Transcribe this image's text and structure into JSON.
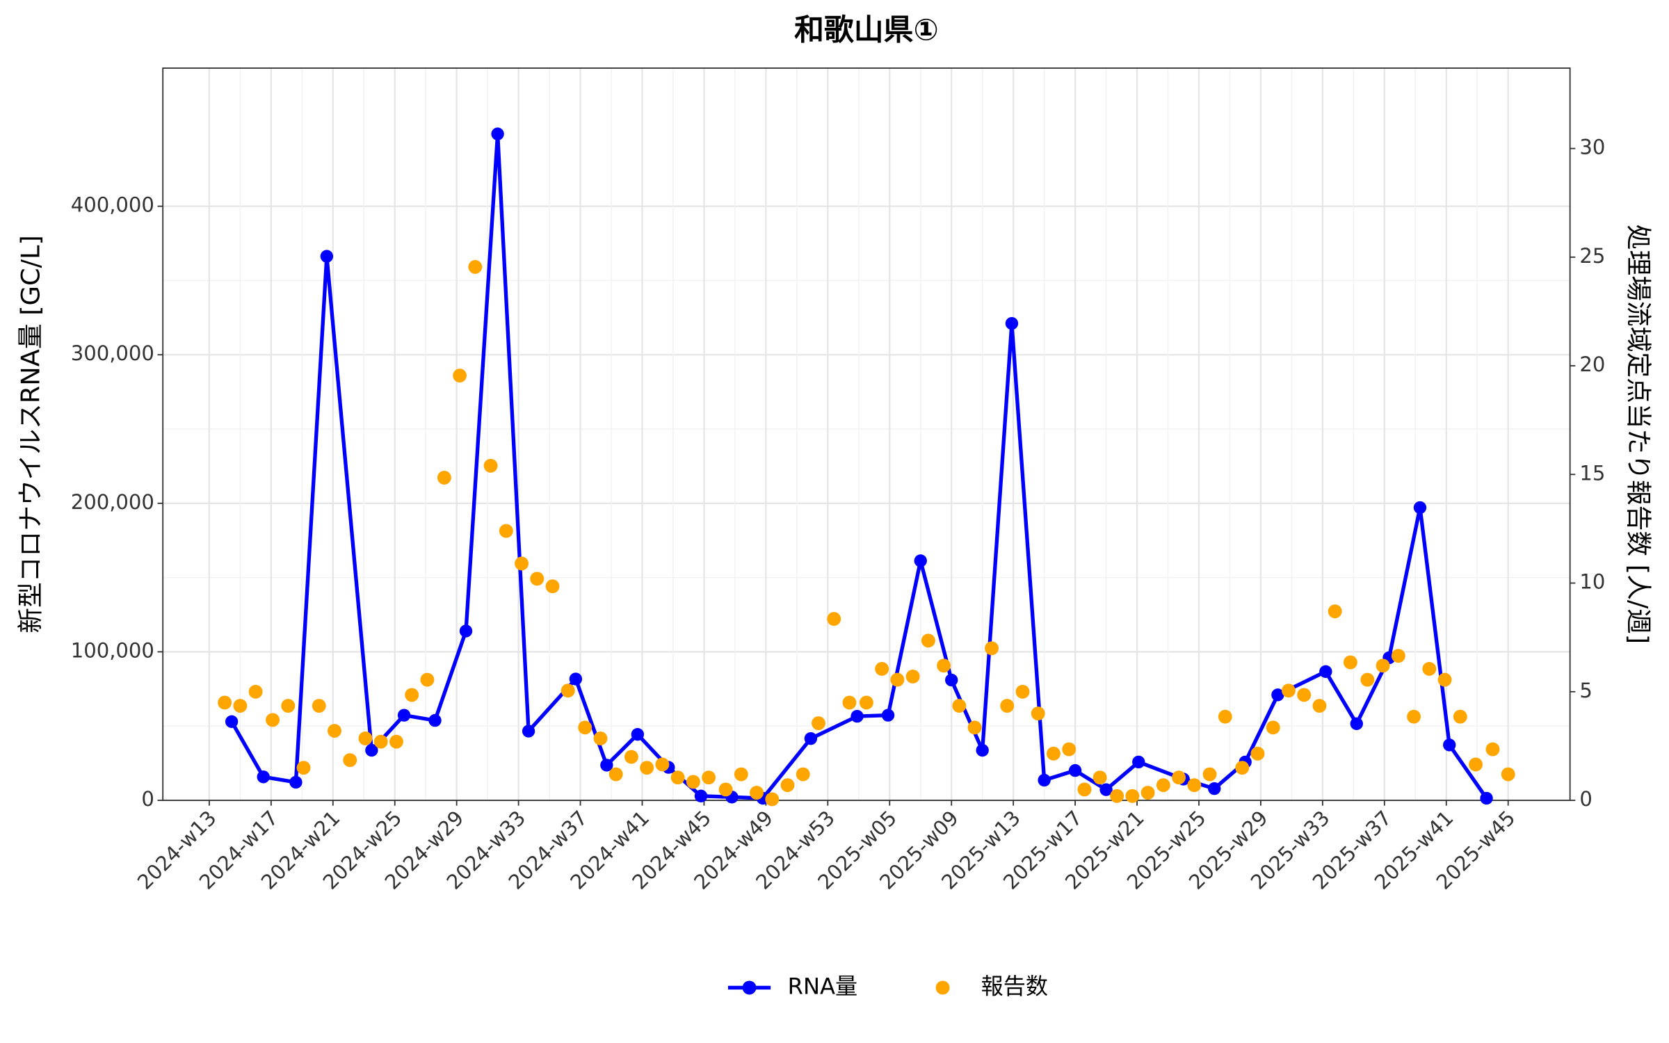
{
  "chart_data": {
    "type": "line",
    "title": "和歌山県①",
    "y_label": "新型コロナウイルスRNA量 [GC/L]",
    "y2_label": "処理場流域定点当たり報告数 [人/週]",
    "xlim": [
      -3,
      88
    ],
    "xticks": [
      {
        "value": 0,
        "label": "2024-w13"
      },
      {
        "value": 4,
        "label": "2024-w17"
      },
      {
        "value": 8,
        "label": "2024-w21"
      },
      {
        "value": 12,
        "label": "2024-w25"
      },
      {
        "value": 16,
        "label": "2024-w29"
      },
      {
        "value": 20,
        "label": "2024-w33"
      },
      {
        "value": 24,
        "label": "2024-w37"
      },
      {
        "value": 28,
        "label": "2024-w41"
      },
      {
        "value": 32,
        "label": "2024-w45"
      },
      {
        "value": 36,
        "label": "2024-w49"
      },
      {
        "value": 40,
        "label": "2024-w53"
      },
      {
        "value": 44,
        "label": "2025-w05"
      },
      {
        "value": 48,
        "label": "2025-w09"
      },
      {
        "value": 52,
        "label": "2025-w13"
      },
      {
        "value": 56,
        "label": "2025-w17"
      },
      {
        "value": 60,
        "label": "2025-w21"
      },
      {
        "value": 64,
        "label": "2025-w25"
      },
      {
        "value": 68,
        "label": "2025-w29"
      },
      {
        "value": 72,
        "label": "2025-w33"
      },
      {
        "value": 76,
        "label": "2025-w37"
      },
      {
        "value": 80,
        "label": "2025-w41"
      },
      {
        "value": 84,
        "label": "2025-w45"
      }
    ],
    "ylim": [
      0,
      493000
    ],
    "yticks": [
      0,
      {
        "value": 100000,
        "label": "100,000"
      },
      {
        "value": 200000,
        "label": "200,000"
      },
      {
        "value": 300000,
        "label": "300,000"
      },
      {
        "value": 400000,
        "label": "400,000"
      }
    ],
    "y2lim": [
      0,
      33.7
    ],
    "y2ticks": [
      0,
      5,
      10,
      15,
      20,
      25,
      30
    ],
    "grid": true,
    "legend": "bottom",
    "series": [
      {
        "name": "RNA量",
        "color": "#0000ff",
        "markers": true,
        "x": [
          1.45,
          3.5,
          5.6,
          7.6,
          10.5,
          12.6,
          14.6,
          16.6,
          18.65,
          20.65,
          23.7,
          25.7,
          27.7,
          29.7,
          31.8,
          33.8,
          35.8,
          38.9,
          41.9,
          43.9,
          46,
          48,
          50,
          51.9,
          54,
          56,
          58,
          60.1,
          63,
          65,
          67,
          69.1,
          72.2,
          74.2,
          76.3,
          78.3,
          80.2,
          82.6
        ],
        "values": [
          53000,
          15800,
          12200,
          366300,
          33700,
          57300,
          53800,
          114000,
          448700,
          46600,
          81700,
          23700,
          44400,
          22200,
          2900,
          2200,
          1400,
          41600,
          56600,
          57300,
          161300,
          81000,
          33700,
          321100,
          13600,
          20100,
          7200,
          25800,
          14300,
          7900,
          25800,
          71000,
          86700,
          51600,
          96000,
          197100,
          37300,
          1400
        ]
      },
      {
        "name": "報告数",
        "color": "#ffa500",
        "axis": "y2",
        "markers": true,
        "line": false,
        "x": [
          1.0,
          2.0,
          3.0,
          4.1,
          5.1,
          6.1,
          7.1,
          8.1,
          9.1,
          10.1,
          11.1,
          12.1,
          13.1,
          14.1,
          15.2,
          16.2,
          17.2,
          18.2,
          19.2,
          20.2,
          21.2,
          22.2,
          23.2,
          24.3,
          25.3,
          26.3,
          27.3,
          28.3,
          29.3,
          30.3,
          31.3,
          32.3,
          33.4,
          34.4,
          35.4,
          36.4,
          37.4,
          38.4,
          39.4,
          40.4,
          41.4,
          42.5,
          43.5,
          44.5,
          45.5,
          46.5,
          47.5,
          48.5,
          49.5,
          50.6,
          51.6,
          52.6,
          53.6,
          54.6,
          55.6,
          56.6,
          57.6,
          58.7,
          59.7,
          60.7,
          61.7,
          62.7,
          63.7,
          64.7,
          65.7,
          66.8,
          67.8,
          68.8,
          69.8,
          70.8,
          71.8,
          72.8,
          73.8,
          74.9,
          75.9,
          76.9,
          77.9,
          78.9,
          79.9,
          80.9,
          81.9,
          83.0,
          84.0
        ],
        "values": [
          4.5,
          4.35,
          5.0,
          3.7,
          4.35,
          1.5,
          4.35,
          3.2,
          1.85,
          2.85,
          2.7,
          2.7,
          4.85,
          5.55,
          14.85,
          19.55,
          24.55,
          15.4,
          12.4,
          10.9,
          10.2,
          9.85,
          5.05,
          3.35,
          2.85,
          1.2,
          2.0,
          1.5,
          1.65,
          1.05,
          0.85,
          1.05,
          0.5,
          1.2,
          0.35,
          0.05,
          0.7,
          1.2,
          3.55,
          8.35,
          4.5,
          4.5,
          6.05,
          5.55,
          5.7,
          7.35,
          6.2,
          4.35,
          3.35,
          7.0,
          4.35,
          5.0,
          4.0,
          2.15,
          2.35,
          0.5,
          1.05,
          0.2,
          0.2,
          0.35,
          0.7,
          1.05,
          0.7,
          1.2,
          3.85,
          1.5,
          2.15,
          3.35,
          5.05,
          4.85,
          4.35,
          8.7,
          6.35,
          5.55,
          6.2,
          6.65,
          3.85,
          6.05,
          5.55,
          3.85,
          1.65,
          2.35,
          1.2
        ]
      }
    ]
  }
}
